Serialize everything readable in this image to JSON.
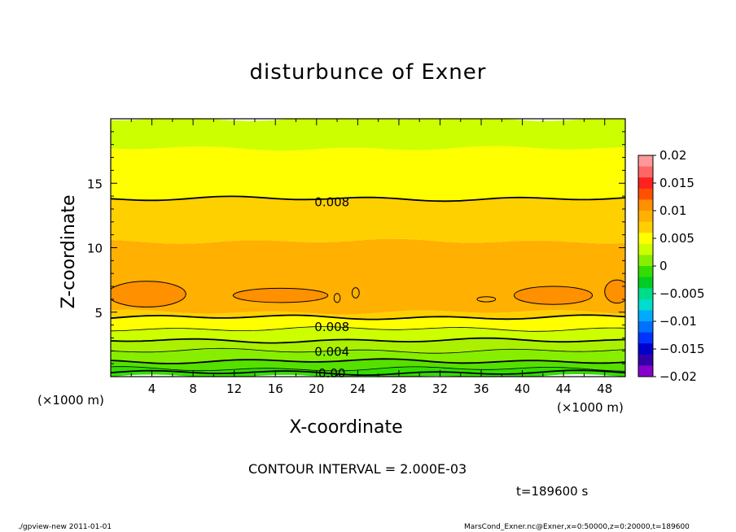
{
  "chart_data": {
    "type": "contour",
    "title": "disturbunce of Exner",
    "xlabel": "X-coordinate",
    "ylabel": "Z-coordinate",
    "x_unit_label": "(×1000 m)",
    "x_ticks": [
      4,
      8,
      12,
      16,
      20,
      24,
      28,
      32,
      36,
      40,
      44,
      48
    ],
    "y_ticks": [
      5,
      10,
      15
    ],
    "xlim": [
      0,
      50
    ],
    "ylim": [
      0,
      20
    ],
    "colorbar": {
      "labels": [
        "0.02",
        "0.015",
        "0.01",
        "0.005",
        "0",
        "−0.005",
        "−0.01",
        "−0.015",
        "−0.02"
      ],
      "colors": [
        "#ff9999",
        "#ff6666",
        "#ff2020",
        "#ff5000",
        "#ff9000",
        "#ffb000",
        "#ffd000",
        "#ffff00",
        "#ccff00",
        "#88ee00",
        "#33dd00",
        "#00cc22",
        "#00dd88",
        "#00ddcc",
        "#00aaff",
        "#0070ff",
        "#0033ff",
        "#0000cc",
        "#3300aa",
        "#8800cc"
      ]
    },
    "contour_labels": [
      {
        "text": "0.008",
        "x": 21.5,
        "y": 13.6
      },
      {
        "text": "0.008",
        "x": 21.5,
        "y": 3.9
      },
      {
        "text": "0.004",
        "x": 21.5,
        "y": 2.0
      },
      {
        "text": "0.00",
        "x": 21.5,
        "y": 0.3
      }
    ],
    "bands": [
      {
        "z_from": 0.0,
        "z_to": 0.6,
        "color": "#33dd00"
      },
      {
        "z_from": 0.6,
        "z_to": 1.2,
        "color": "#55e000"
      },
      {
        "z_from": 1.2,
        "z_to": 2.0,
        "color": "#88ee00"
      },
      {
        "z_from": 2.0,
        "z_to": 2.8,
        "color": "#aaf000"
      },
      {
        "z_from": 2.8,
        "z_to": 3.7,
        "color": "#ccff00"
      },
      {
        "z_from": 3.7,
        "z_to": 4.6,
        "color": "#ffff00"
      },
      {
        "z_from": 4.6,
        "z_to": 5.0,
        "color": "#ffd000"
      },
      {
        "z_from": 5.0,
        "z_to": 10.5,
        "color": "#ffb000"
      },
      {
        "z_from": 10.5,
        "z_to": 13.8,
        "color": "#ffd000"
      },
      {
        "z_from": 13.8,
        "z_to": 17.7,
        "color": "#ffff00"
      },
      {
        "z_from": 17.7,
        "z_to": 20.0,
        "color": "#ccff00"
      }
    ],
    "contour_lines": [
      0.3,
      0.6,
      1.2,
      2.0,
      2.8,
      3.7,
      4.6,
      13.8
    ],
    "blobs": [
      {
        "x": 3.5,
        "y": 6.4,
        "rx": 3.8,
        "ry": 1.0
      },
      {
        "x": 16.5,
        "y": 6.3,
        "rx": 4.6,
        "ry": 0.55
      },
      {
        "x": 43.0,
        "y": 6.3,
        "rx": 3.8,
        "ry": 0.7
      },
      {
        "x": 49.2,
        "y": 6.6,
        "rx": 1.2,
        "ry": 0.9
      }
    ],
    "small_loops": [
      {
        "x": 22.0,
        "y": 6.1,
        "rx": 0.3,
        "ry": 0.35
      },
      {
        "x": 23.8,
        "y": 6.5,
        "rx": 0.35,
        "ry": 0.4
      },
      {
        "x": 36.5,
        "y": 6.0,
        "rx": 0.9,
        "ry": 0.2
      }
    ]
  },
  "notes": {
    "contour_interval": "CONTOUR INTERVAL = 2.000E-03",
    "time": "t=189600 s",
    "footer_left": "./gpview-new   2011-01-01",
    "footer_right": "MarsCond_Exner.nc@Exner,x=0:50000,z=0:20000,t=189600"
  }
}
